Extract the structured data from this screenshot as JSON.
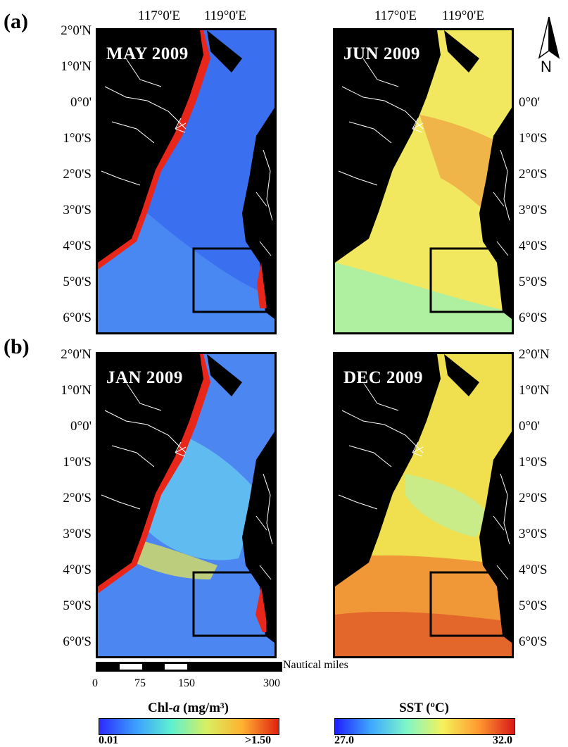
{
  "panel_a_label": "(a)",
  "panel_b_label": "(b)",
  "maps": {
    "may": {
      "title": "MAY 2009",
      "variable": "chl"
    },
    "jun": {
      "title": "JUN 2009",
      "variable": "sst"
    },
    "jan": {
      "title": "JAN 2009",
      "variable": "chl"
    },
    "dec": {
      "title": "DEC 2009",
      "variable": "sst"
    }
  },
  "lon_ticks": [
    "117°0'E",
    "119°0'E"
  ],
  "lat_ticks": [
    "2°0'N",
    "1°0'N",
    "0°0'",
    "1°0'S",
    "2°0'S",
    "3°0'S",
    "4°0'S",
    "5°0'S",
    "6°0'S"
  ],
  "north_arrow": {
    "letter": "N",
    "icon": "north-arrow-icon"
  },
  "scale_bar": {
    "unit": "Nautical miles",
    "labels": [
      "0",
      "75",
      "150",
      "300"
    ]
  },
  "chl_colorbar": {
    "title_prefix": "Chl-",
    "title_italic": "a",
    "title_suffix": " (mg/m³)",
    "min": "0.01",
    "max": ">1.50",
    "colors": [
      "#2a2aff",
      "#3c9cff",
      "#5ef0d0",
      "#d8f060",
      "#ffb030",
      "#e02010"
    ]
  },
  "sst_colorbar": {
    "title": "SST (ºC)",
    "min": "27.0",
    "max": "32.0",
    "colors": [
      "#1f1fff",
      "#3ea8ff",
      "#7ff7c8",
      "#f4f25a",
      "#ff9a30",
      "#d81818"
    ]
  },
  "colors": {
    "land": "#000000",
    "rivers": "#ffffff",
    "chl_sea": "#3a6cf0",
    "chl_coast": "#e8261a",
    "sst_jun_sea": "#f2e860",
    "sst_dec_sea": "#f0e050"
  }
}
